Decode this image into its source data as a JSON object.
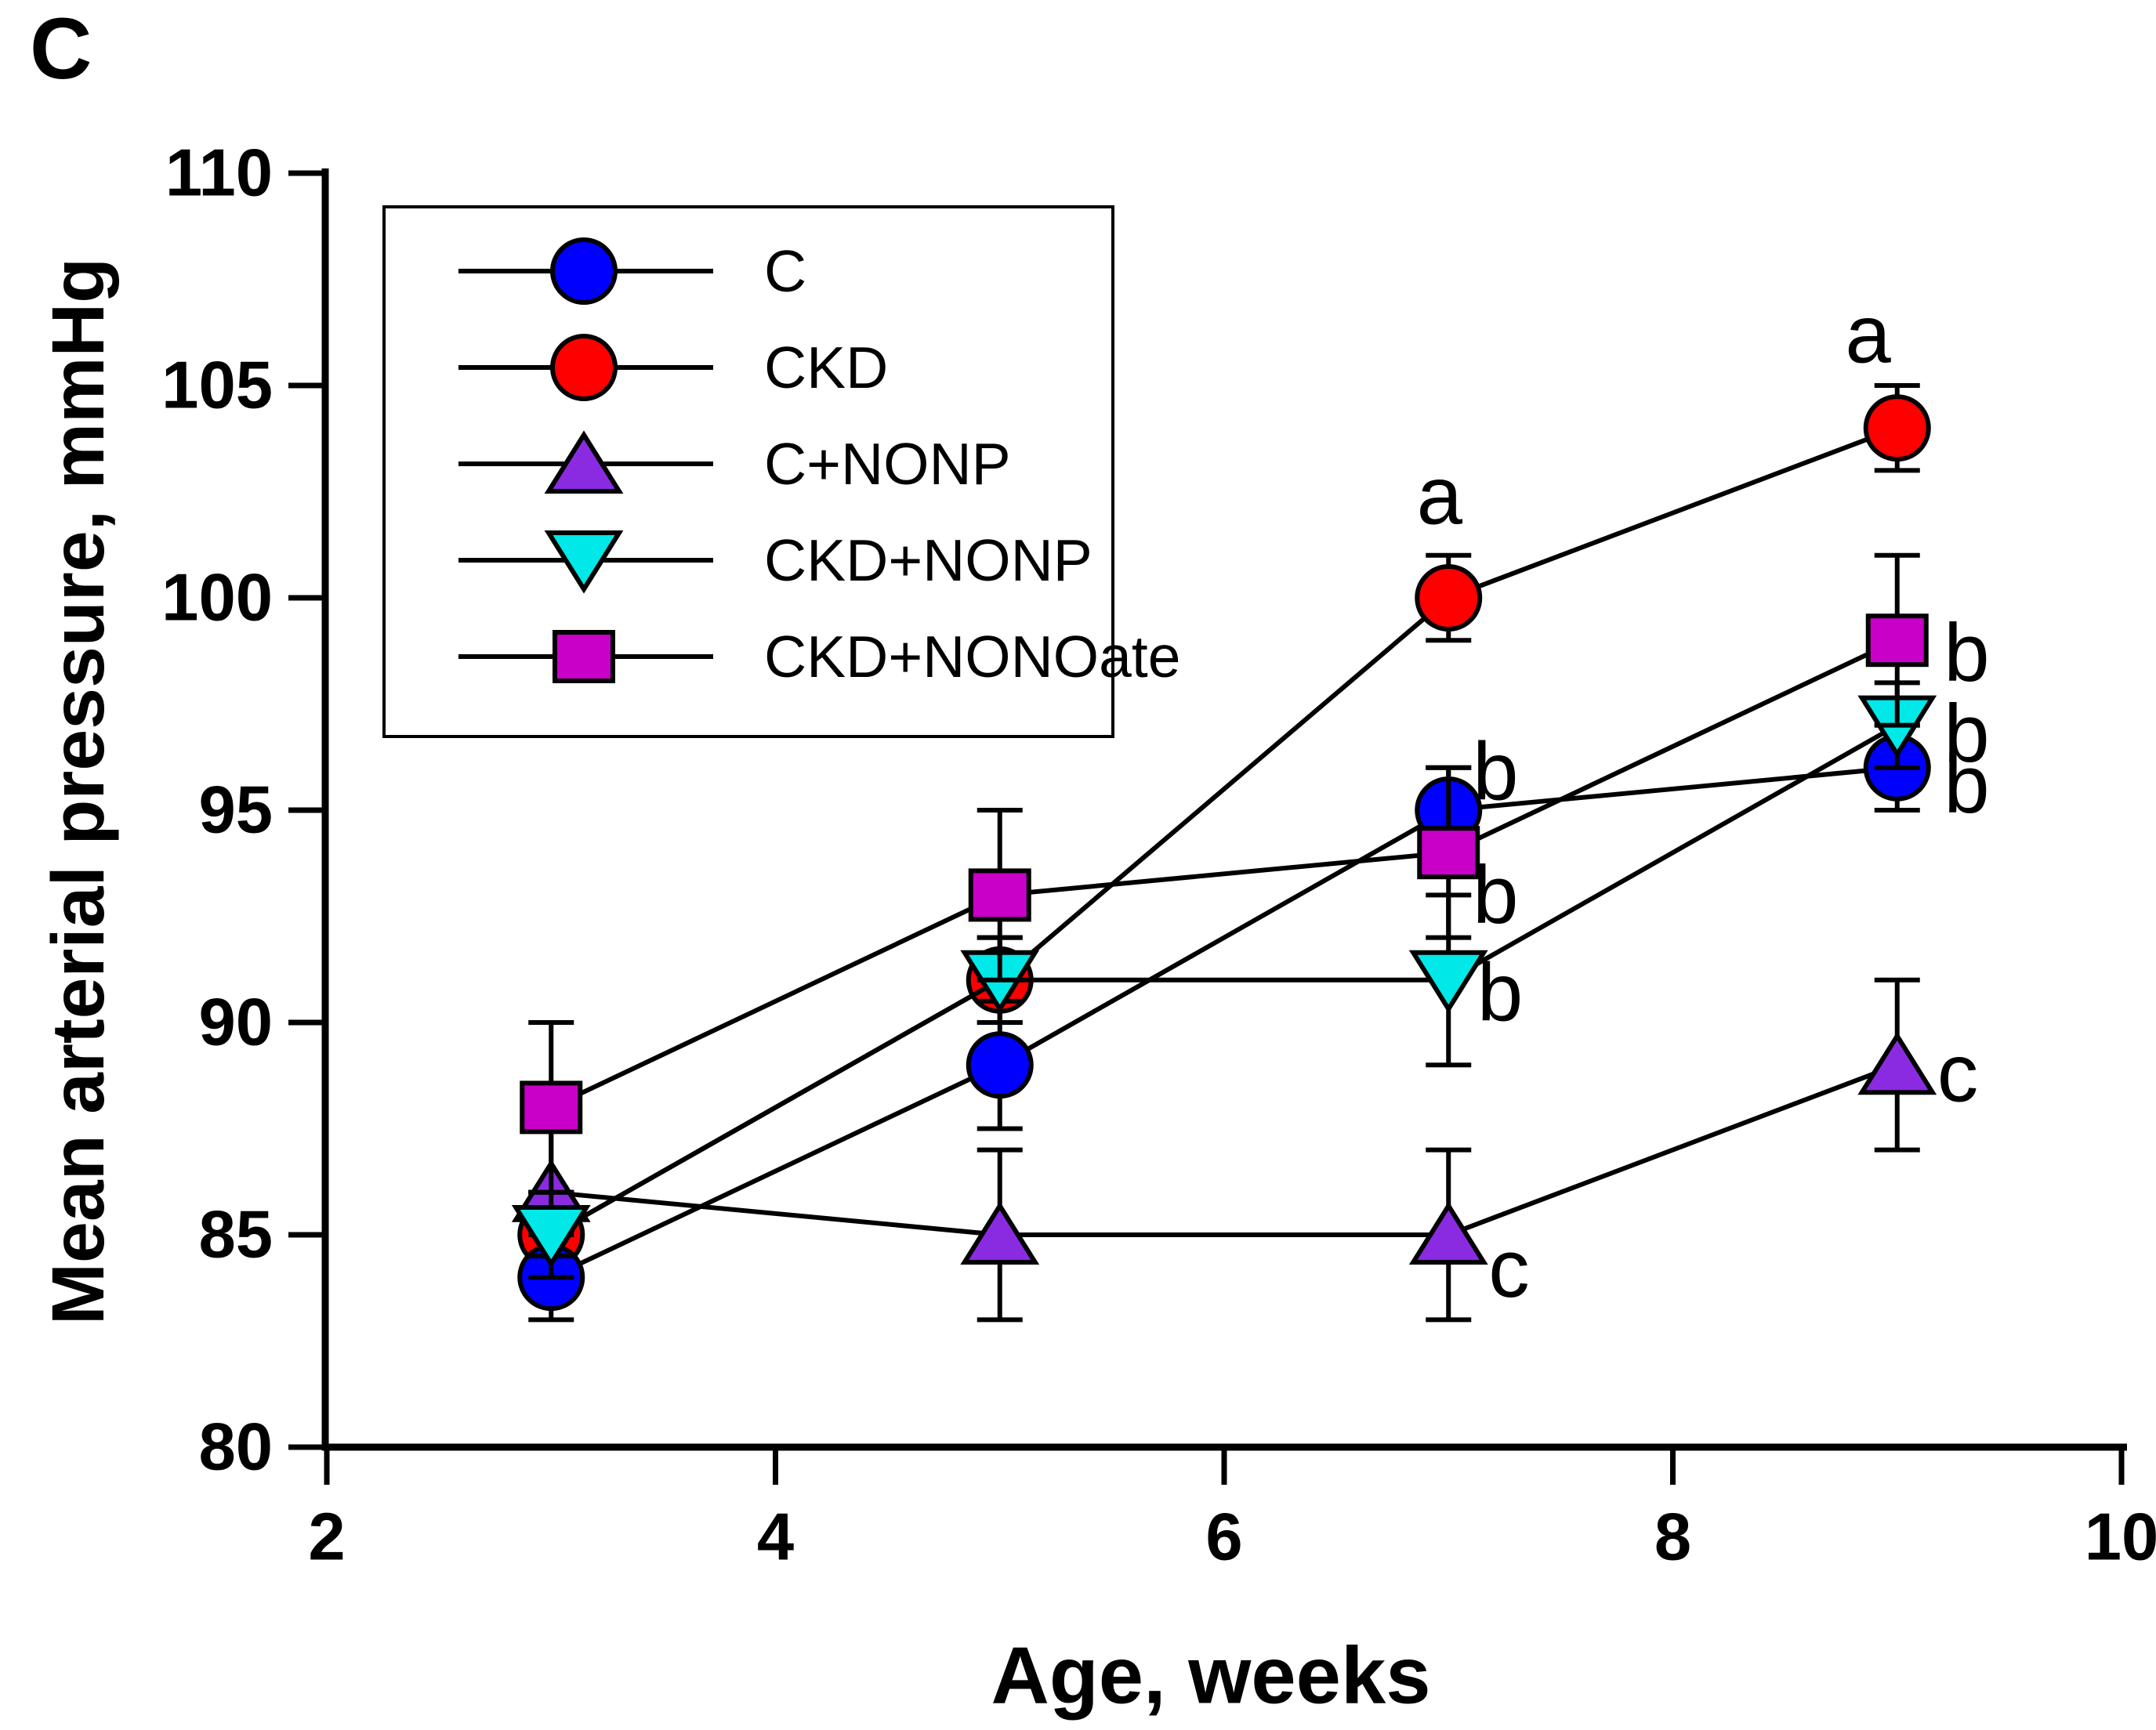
{
  "panel_label": "C",
  "figure": {
    "background_color": "#FFFFFF",
    "axis_color": "#000000",
    "line_color": "#000000"
  },
  "chart_data": {
    "type": "line",
    "title": "",
    "xlabel": "Age, weeks",
    "ylabel": "Mean arterial pressure, mmHg",
    "xlim": [
      2,
      10
    ],
    "ylim": [
      80,
      110
    ],
    "x_ticks": [
      2,
      4,
      6,
      8,
      10
    ],
    "y_ticks": [
      80,
      85,
      90,
      95,
      100,
      105,
      110
    ],
    "grid": false,
    "legend_position": "upper-left",
    "x": [
      3,
      5,
      7,
      9
    ],
    "series": [
      {
        "name": "C",
        "marker": "circle",
        "color": "#0000FF",
        "values": [
          84,
          89,
          95,
          96
        ],
        "errors": [
          1,
          1.5,
          1,
          1
        ]
      },
      {
        "name": "CKD",
        "marker": "circle",
        "color": "#FF0000",
        "values": [
          85,
          91,
          100,
          104
        ],
        "errors": [
          1,
          1,
          1,
          1
        ]
      },
      {
        "name": "C+NONP",
        "marker": "triangle-up",
        "color": "#8A2BE2",
        "values": [
          86,
          85,
          85,
          89
        ],
        "errors": [
          1.5,
          2,
          2,
          2
        ]
      },
      {
        "name": "CKD+NONP",
        "marker": "triangle-down",
        "color": "#00E8E8",
        "values": [
          85,
          91,
          91,
          97
        ],
        "errors": [
          1,
          1,
          2,
          1
        ]
      },
      {
        "name": "CKD+NONOate",
        "marker": "square",
        "color": "#C800C8",
        "values": [
          88,
          93,
          94,
          99
        ],
        "errors": [
          2,
          2,
          2,
          2
        ]
      }
    ],
    "annotations": [
      {
        "text": "a",
        "week": 6.96,
        "value": 102.4
      },
      {
        "text": "a",
        "week": 8.87,
        "value": 106.2
      },
      {
        "text": "b",
        "week": 7.21,
        "value": 95.9
      },
      {
        "text": "b",
        "week": 7.21,
        "value": 93.0
      },
      {
        "text": "b",
        "week": 7.23,
        "value": 90.7
      },
      {
        "text": "c",
        "week": 7.27,
        "value": 84.2
      },
      {
        "text": "b",
        "week": 9.31,
        "value": 98.7
      },
      {
        "text": "b",
        "week": 9.31,
        "value": 96.8
      },
      {
        "text": "b",
        "week": 9.31,
        "value": 95.6
      },
      {
        "text": "c",
        "week": 9.27,
        "value": 88.8
      }
    ]
  }
}
